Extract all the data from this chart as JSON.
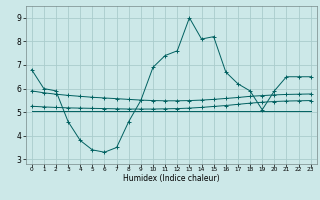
{
  "title": "",
  "xlabel": "Humidex (Indice chaleur)",
  "bg_color": "#cce8e8",
  "grid_color": "#aacccc",
  "line_color": "#006060",
  "xlim": [
    -0.5,
    23.5
  ],
  "ylim": [
    2.8,
    9.5
  ],
  "yticks": [
    3,
    4,
    5,
    6,
    7,
    8,
    9
  ],
  "xtick_labels": [
    "0",
    "1",
    "2",
    "3",
    "4",
    "5",
    "6",
    "7",
    "8",
    "9",
    "10",
    "11",
    "12",
    "13",
    "14",
    "15",
    "16",
    "17",
    "18",
    "19",
    "20",
    "21",
    "22",
    "23"
  ],
  "series1_x": [
    0,
    1,
    2,
    3,
    4,
    5,
    6,
    7,
    8,
    9,
    10,
    11,
    12,
    13,
    14,
    15,
    16,
    17,
    18,
    19,
    20,
    21,
    22,
    23
  ],
  "series1_y": [
    6.8,
    6.0,
    5.9,
    4.6,
    3.8,
    3.4,
    3.3,
    3.5,
    4.6,
    5.5,
    6.9,
    7.4,
    7.6,
    9.0,
    8.1,
    8.2,
    6.7,
    6.2,
    5.9,
    5.1,
    5.9,
    6.5,
    6.5,
    6.5
  ],
  "series2_x": [
    0,
    1,
    2,
    3,
    4,
    5,
    6,
    7,
    8,
    9,
    10,
    11,
    12,
    13,
    14,
    15,
    16,
    17,
    18,
    19,
    20,
    21,
    22,
    23
  ],
  "series2_y": [
    5.25,
    5.22,
    5.2,
    5.18,
    5.17,
    5.16,
    5.15,
    5.14,
    5.13,
    5.13,
    5.13,
    5.14,
    5.15,
    5.17,
    5.2,
    5.24,
    5.28,
    5.33,
    5.38,
    5.42,
    5.45,
    5.47,
    5.48,
    5.49
  ],
  "series3_x": [
    0,
    1,
    2,
    3,
    4,
    5,
    6,
    7,
    8,
    9,
    10,
    11,
    12,
    13,
    14,
    15,
    16,
    17,
    18,
    19,
    20,
    21,
    22,
    23
  ],
  "series3_y": [
    5.9,
    5.82,
    5.76,
    5.71,
    5.67,
    5.63,
    5.6,
    5.57,
    5.54,
    5.51,
    5.49,
    5.48,
    5.48,
    5.49,
    5.51,
    5.54,
    5.58,
    5.62,
    5.67,
    5.7,
    5.73,
    5.75,
    5.76,
    5.77
  ],
  "series4_x": [
    0,
    23
  ],
  "series4_y": [
    5.05,
    5.05
  ]
}
